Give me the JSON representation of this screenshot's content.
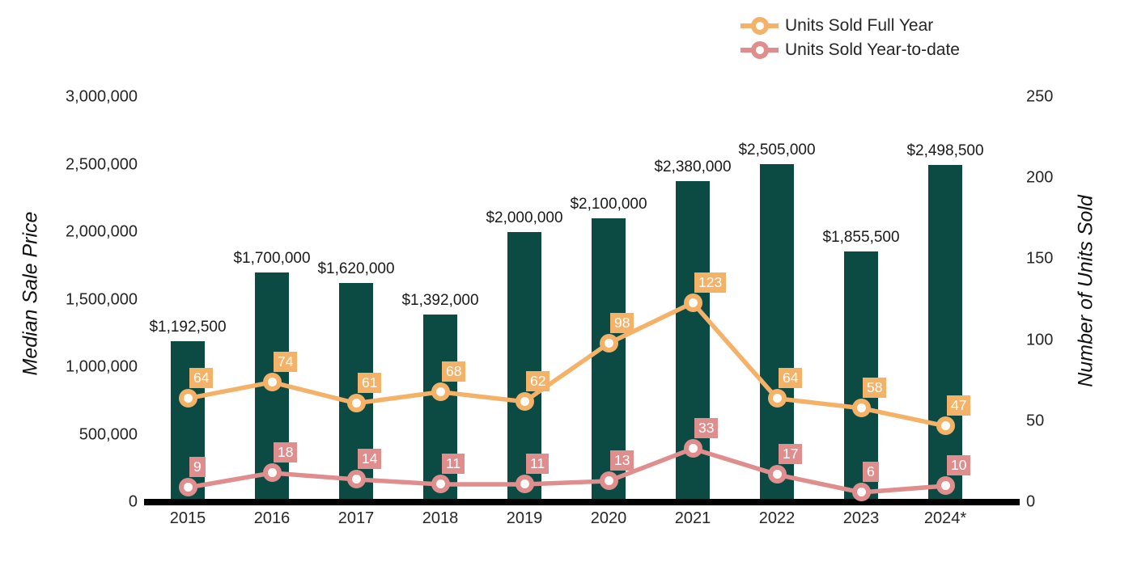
{
  "chart_data": {
    "type": "combo-bar-line",
    "categories": [
      "2015",
      "2016",
      "2017",
      "2018",
      "2019",
      "2020",
      "2021",
      "2022",
      "2023",
      "2024*"
    ],
    "bar_series": {
      "name": "Median Sale Price",
      "axis": "left",
      "color": "#0c4a44",
      "values": [
        1192500,
        1700000,
        1620000,
        1392000,
        2000000,
        2100000,
        2380000,
        2505000,
        1855500,
        2498500
      ],
      "value_labels": [
        "$1,192,500",
        "$1,700,000",
        "$1,620,000",
        "$1,392,000",
        "$2,000,000",
        "$2,100,000",
        "$2,380,000",
        "$2,505,000",
        "$1,855,500",
        "$2,498,500"
      ]
    },
    "line_series": [
      {
        "name": "Units Sold Full Year",
        "axis": "right",
        "color": "#f4b168",
        "values": [
          64,
          74,
          61,
          68,
          62,
          98,
          123,
          64,
          58,
          47
        ]
      },
      {
        "name": "Units Sold Year-to-date",
        "axis": "right",
        "color": "#df8e8d",
        "values": [
          9,
          18,
          14,
          11,
          11,
          13,
          33,
          17,
          6,
          10
        ]
      }
    ],
    "left_axis": {
      "title": "Median Sale Price",
      "range": [
        0,
        3000000
      ],
      "tick_values": [
        0,
        500000,
        1000000,
        1500000,
        2000000,
        2500000,
        3000000
      ],
      "tick_labels": [
        "0",
        "500,000",
        "1,000,000",
        "1,500,000",
        "2,000,000",
        "2,500,000",
        "3,000,000"
      ]
    },
    "right_axis": {
      "title": "Number of Units Sold",
      "range": [
        0,
        250
      ],
      "tick_values": [
        0,
        50,
        100,
        150,
        200,
        250
      ],
      "tick_labels": [
        "0",
        "50",
        "100",
        "150",
        "200",
        "250"
      ]
    },
    "grid": false,
    "legend_position": "top-right",
    "x_axis_line_color": "#000000",
    "background_color": "#ffffff"
  }
}
